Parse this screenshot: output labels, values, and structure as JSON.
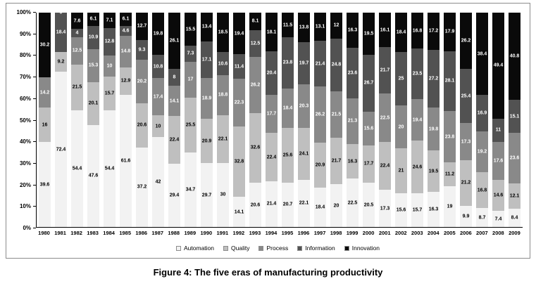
{
  "figure": {
    "caption": "Figure 4: The five eras of manufacturing productivity"
  },
  "chart_data": {
    "type": "bar",
    "variant": "stacked-100-percent",
    "categories": [
      "1980",
      "1981",
      "1982",
      "1983",
      "1984",
      "1985",
      "1986",
      "1987",
      "1988",
      "1989",
      "1990",
      "1991",
      "1992",
      "1993",
      "1994",
      "1995",
      "1996",
      "1997",
      "1998",
      "1999",
      "2000",
      "2001",
      "2002",
      "2003",
      "2004",
      "2005",
      "2006",
      "2007",
      "2008",
      "2009"
    ],
    "series": [
      {
        "name": "Automation",
        "color": "#f2f2f2",
        "label_color": "#000000",
        "values": [
          39.6,
          72.4,
          54.4,
          47.6,
          54.4,
          61.6,
          37.2,
          42,
          29.4,
          34.7,
          29.7,
          30,
          14.1,
          20.6,
          21.4,
          20.7,
          22.1,
          18.4,
          20,
          22.5,
          20.5,
          17.3,
          15.6,
          15.7,
          16.3,
          19,
          9.9,
          8.7,
          7.4,
          8.4
        ]
      },
      {
        "name": "Quality",
        "color": "#bfbfbf",
        "label_color": "#000000",
        "values": [
          16,
          9.2,
          21.5,
          20.1,
          15.7,
          12.9,
          20.6,
          10,
          22.4,
          25.5,
          20.9,
          22.1,
          32.8,
          32.6,
          22.4,
          25.6,
          24.1,
          20.9,
          21.7,
          16.3,
          17.7,
          22.4,
          21,
          24.6,
          19.5,
          11.2,
          21.2,
          16.8,
          14.6,
          12.1
        ]
      },
      {
        "name": "Process",
        "color": "#898989",
        "label_color": "#ffffff",
        "values": [
          14.2,
          0,
          12.5,
          15.3,
          10,
          14.8,
          20.2,
          17.4,
          14.1,
          17,
          18.9,
          18.8,
          22.3,
          26.2,
          17.7,
          18.4,
          20.3,
          26.2,
          21.5,
          21.3,
          15.6,
          22.5,
          20,
          19.4,
          19.8,
          23.8,
          17.3,
          19.2,
          17.6,
          23.6
        ]
      },
      {
        "name": "Information",
        "color": "#525252",
        "label_color": "#ffffff",
        "values": [
          0,
          18.4,
          4,
          10.9,
          12.8,
          4.6,
          9.3,
          10.8,
          8,
          7.3,
          17.1,
          10.6,
          11.4,
          12.5,
          20.4,
          23.8,
          19.7,
          21.4,
          24.8,
          23.6,
          26.7,
          21.7,
          25,
          23.5,
          27.2,
          28.1,
          25.4,
          16.9,
          11,
          15.1
        ]
      },
      {
        "name": "Innovation",
        "color": "#0a0a0a",
        "label_color": "#ffffff",
        "values": [
          30.2,
          0,
          7.6,
          6.1,
          7.1,
          6.1,
          12.7,
          19.8,
          26.1,
          15.5,
          13.4,
          18.5,
          19.4,
          8.1,
          18.1,
          11.5,
          13.8,
          13.1,
          12,
          16.3,
          19.5,
          16.1,
          18.4,
          16.8,
          17.2,
          17.9,
          26.2,
          38.4,
          49.4,
          40.8
        ]
      }
    ],
    "y_ticks": [
      "0%",
      "10%",
      "20%",
      "30%",
      "40%",
      "50%",
      "60%",
      "70%",
      "80%",
      "90%",
      "100%"
    ],
    "ylim": [
      0,
      100
    ],
    "grid": false,
    "legend_position": "bottom",
    "explicit_zero_labels": [
      {
        "series": "Innovation",
        "category": "1981"
      }
    ]
  }
}
